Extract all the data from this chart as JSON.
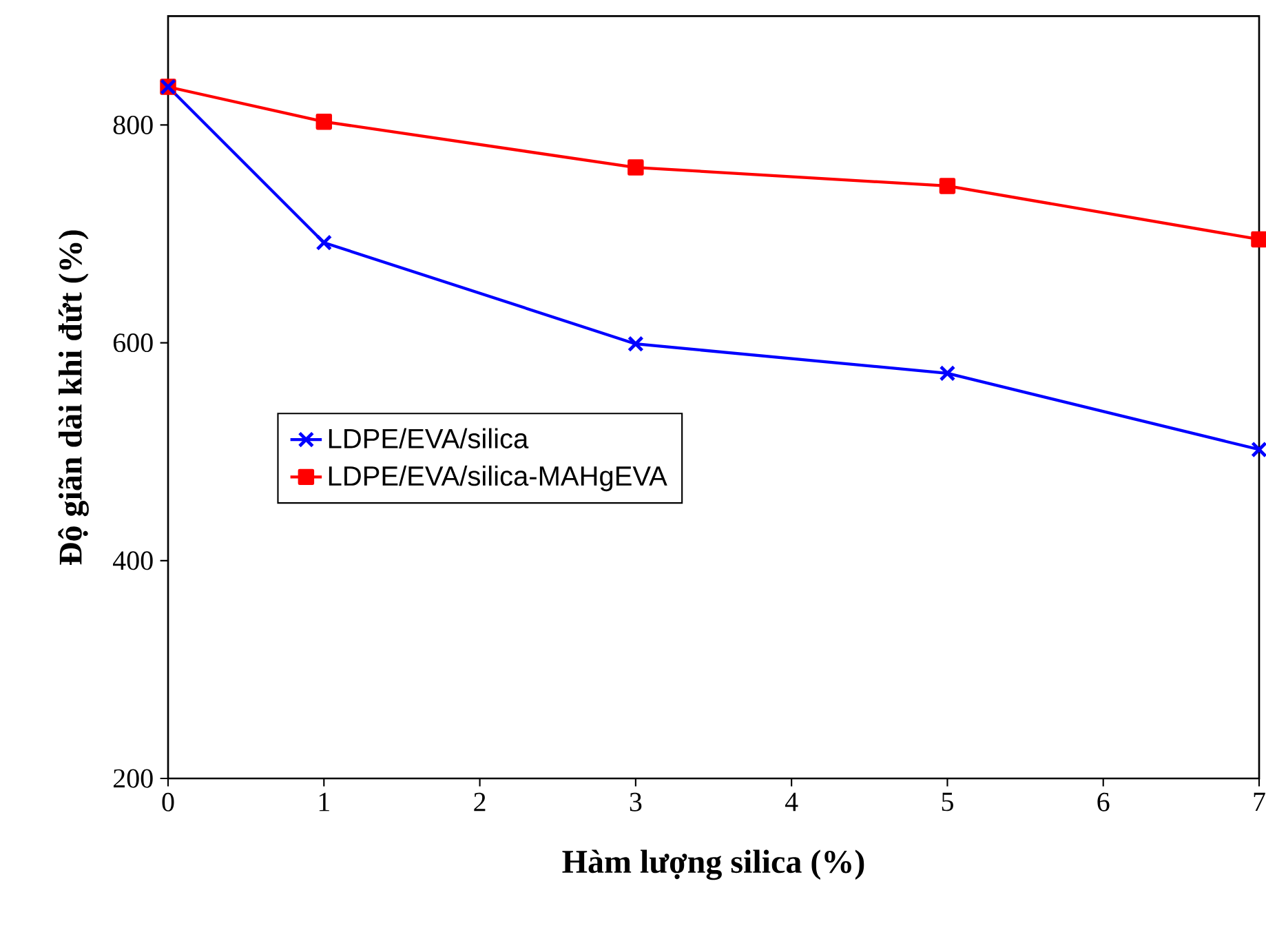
{
  "chart_data": {
    "type": "line",
    "xlabel": "Hàm lượng silica (%)",
    "ylabel": "Độ giãn dài khi đứt (%)",
    "xlim": [
      0,
      7
    ],
    "ylim": [
      200,
      900
    ],
    "xticks": [
      0,
      1,
      2,
      3,
      4,
      5,
      6,
      7
    ],
    "yticks": [
      200,
      400,
      600,
      800
    ],
    "x": [
      0,
      1,
      3,
      5,
      7
    ],
    "legend": "left",
    "grid": false,
    "series": [
      {
        "name": "LDPE/EVA/silica",
        "color": "#0000ff",
        "marker": "cross",
        "values": [
          835,
          692,
          599,
          572,
          502
        ]
      },
      {
        "name": "LDPE/EVA/silica-MAHgEVA",
        "color": "#ff0000",
        "marker": "square",
        "values": [
          835,
          803,
          761,
          744,
          695
        ]
      }
    ]
  }
}
